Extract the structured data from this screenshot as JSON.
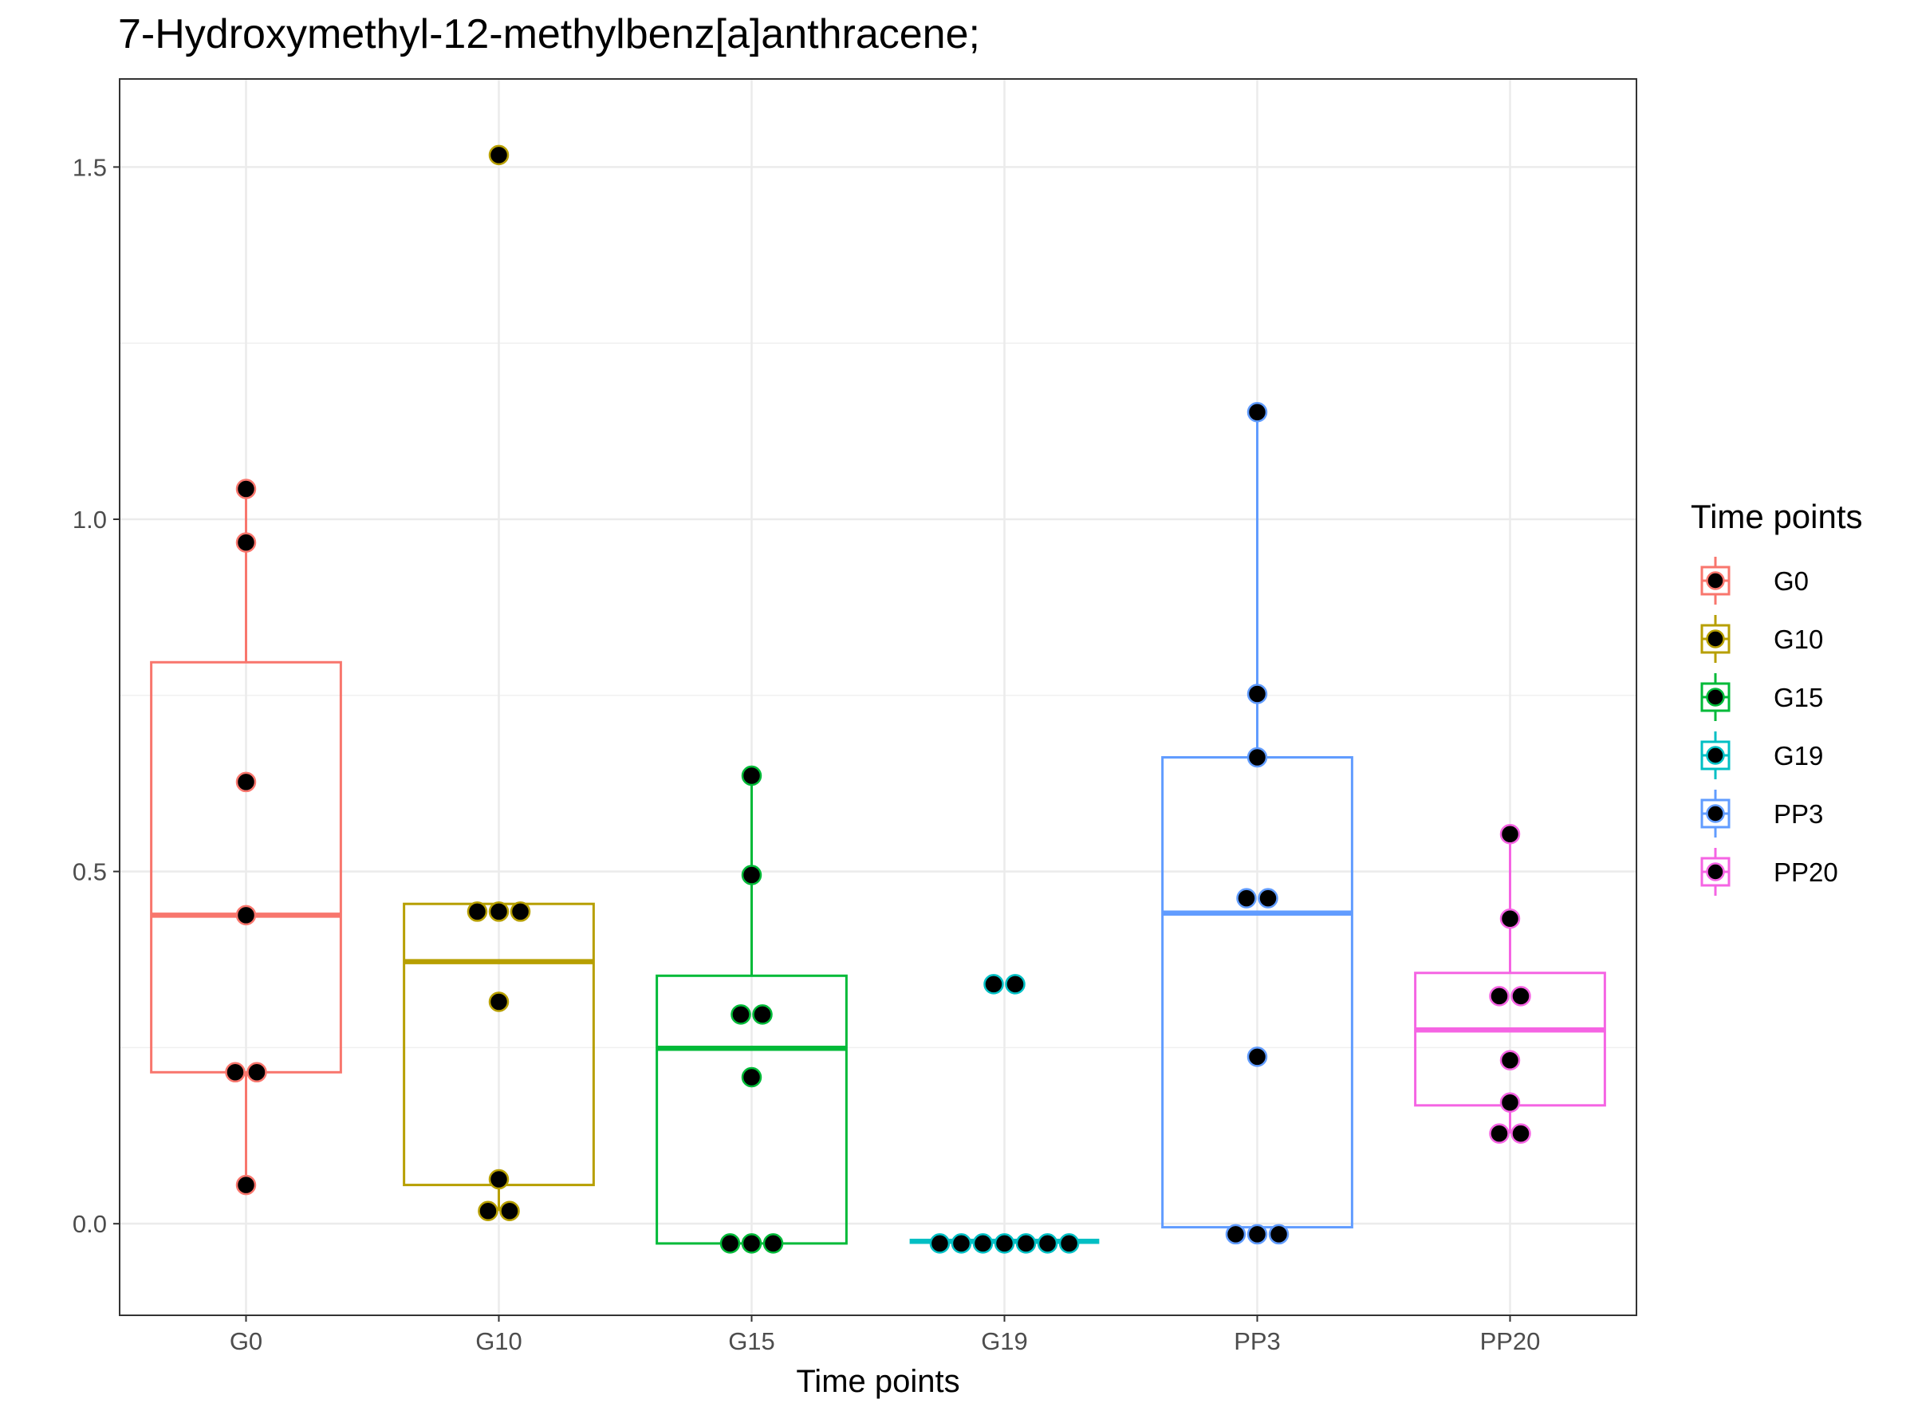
{
  "chart_data": {
    "type": "boxplot",
    "title": "7-Hydroxymethyl-12-methylbenz[a]anthracene;",
    "xlabel": "Time points",
    "ylabel": "",
    "ylim": [
      -0.13,
      1.625
    ],
    "yticks": [
      0.0,
      0.5,
      1.0,
      1.5
    ],
    "ytick_labels": [
      "0.0",
      "0.5",
      "1.0",
      "1.5"
    ],
    "grid": true,
    "legend": {
      "title": "Time points",
      "position": "right"
    },
    "categories": [
      "G0",
      "G10",
      "G15",
      "G19",
      "PP3",
      "PP20"
    ],
    "series": [
      {
        "name": "G0",
        "color": "#F8766D",
        "box": {
          "q1": 0.215,
          "median": 0.438,
          "q3": 0.797,
          "whisker_low": 0.055,
          "whisker_high": 1.043
        },
        "points": [
          1.043,
          0.967,
          0.627,
          0.438,
          0.215,
          0.215,
          0.055
        ]
      },
      {
        "name": "G10",
        "color": "#B79F00",
        "box": {
          "q1": 0.055,
          "median": 0.372,
          "q3": 0.454,
          "whisker_low": 0.018,
          "whisker_high": 0.454
        },
        "points": [
          1.517,
          0.443,
          0.443,
          0.443,
          0.315,
          0.063,
          0.018,
          0.018
        ]
      },
      {
        "name": "G15",
        "color": "#00BA38",
        "box": {
          "q1": -0.028,
          "median": 0.249,
          "q3": 0.352,
          "whisker_low": -0.028,
          "whisker_high": 0.636
        },
        "points": [
          0.636,
          0.495,
          0.297,
          0.297,
          0.208,
          -0.028,
          -0.028,
          -0.028
        ]
      },
      {
        "name": "G19",
        "color": "#00BFC4",
        "box": {
          "q1": -0.025,
          "median": -0.025,
          "q3": -0.025,
          "whisker_low": -0.025,
          "whisker_high": -0.025
        },
        "points": [
          0.34,
          0.34,
          -0.028,
          -0.028,
          -0.028,
          -0.028,
          -0.028,
          -0.028,
          -0.028
        ]
      },
      {
        "name": "PP3",
        "color": "#619CFF",
        "box": {
          "q1": -0.005,
          "median": 0.441,
          "q3": 0.662,
          "whisker_low": -0.005,
          "whisker_high": 1.152
        },
        "points": [
          1.152,
          0.752,
          0.662,
          0.462,
          0.462,
          0.237,
          -0.015,
          -0.015,
          -0.015
        ]
      },
      {
        "name": "PP20",
        "color": "#F564E3",
        "box": {
          "q1": 0.168,
          "median": 0.275,
          "q3": 0.356,
          "whisker_low": 0.128,
          "whisker_high": 0.553
        },
        "points": [
          0.553,
          0.433,
          0.323,
          0.323,
          0.232,
          0.172,
          0.128,
          0.128
        ]
      }
    ]
  }
}
